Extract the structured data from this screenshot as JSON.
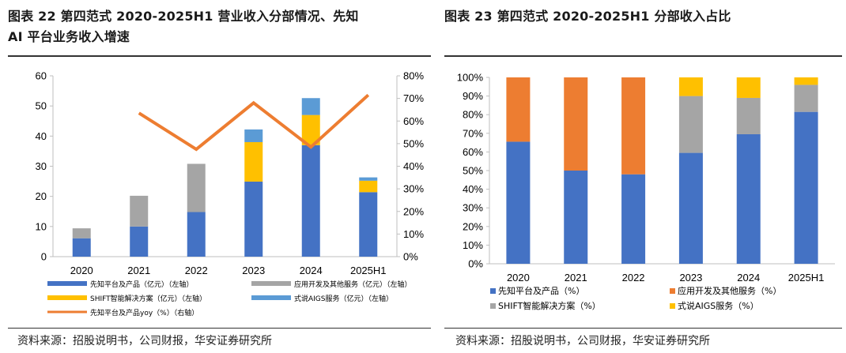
{
  "titles": {
    "left_line1": "图表 22 第四范式 2020-2025H1 营业收入分部情况、先知",
    "left_line2": "AI 平台业务收入增速",
    "right": "图表 23 第四范式 2020-2025H1 分部收入占比"
  },
  "sources": {
    "left": "资料来源：招股说明书，公司财报，华安证券研究所",
    "right": "资料来源：招股说明书，公司财报，华安证券研究所"
  },
  "colors": {
    "blue": "#4472C4",
    "orange": "#ED7D31",
    "gray": "#A5A5A5",
    "yellow": "#FFC000",
    "lightblue": "#5B9BD5"
  },
  "chart_data": [
    {
      "type": "bar",
      "stacked": true,
      "categories": [
        "2020",
        "2021",
        "2022",
        "2023",
        "2024",
        "2025H1"
      ],
      "series": [
        {
          "name": "先知平台及产品（亿元）（左轴）",
          "color": "#4472C4",
          "values": [
            6.1,
            10.0,
            14.8,
            24.9,
            37.0,
            21.4
          ]
        },
        {
          "name": "应用开发及其他服务（亿元）（左轴）",
          "color": "#A5A5A5",
          "values": [
            3.3,
            10.2,
            16.0,
            0,
            0,
            0
          ]
        },
        {
          "name": "SHIFT智能解决方案（亿元）（左轴）",
          "color": "#FFC000",
          "values": [
            0,
            0,
            0,
            13.1,
            10.0,
            3.8
          ]
        },
        {
          "name": "式说AIGS服务（亿元）（左轴）",
          "color": "#5B9BD5",
          "values": [
            0,
            0,
            0,
            4.2,
            5.6,
            1.1
          ]
        }
      ],
      "line_series": {
        "name": "先知平台及产品yoy（%）（右轴）",
        "color": "#ED7D31",
        "values": [
          null,
          63.5,
          47.5,
          68.0,
          48.5,
          71.5
        ]
      },
      "ylim_left": [
        0,
        60
      ],
      "yticks_left": [
        "0",
        "10",
        "20",
        "30",
        "40",
        "50",
        "60"
      ],
      "ylim_right": [
        0,
        80
      ],
      "yticks_right": [
        "0%",
        "10%",
        "20%",
        "30%",
        "40%",
        "50%",
        "60%",
        "70%",
        "80%"
      ],
      "legend": [
        "先知平台及产品（亿元）（左轴）",
        "应用开发及其他服务（亿元）（左轴）",
        "SHIFT智能解决方案（亿元）（左轴）",
        "式说AIGS服务（亿元）（左轴）",
        "先知平台及产品yoy（%）（右轴）"
      ],
      "legend_position": "bottom",
      "grid": false
    },
    {
      "type": "bar",
      "stacked": true,
      "percent": true,
      "categories": [
        "2020",
        "2021",
        "2022",
        "2023",
        "2024",
        "2025H1"
      ],
      "series": [
        {
          "name": "先知平台及产品（%）",
          "color": "#4472C4",
          "values": [
            65.5,
            50.0,
            48.0,
            59.5,
            69.5,
            81.5
          ]
        },
        {
          "name": "应用开发及其他服务（%）",
          "color": "#ED7D31",
          "values": [
            34.5,
            50.0,
            52.0,
            0,
            0,
            0
          ]
        },
        {
          "name": "SHIFT智能解决方案（%）",
          "color": "#A5A5A5",
          "values": [
            0,
            0,
            0,
            30.5,
            19.5,
            14.5
          ]
        },
        {
          "name": "式说AIGS服务（%）",
          "color": "#FFC000",
          "values": [
            0,
            0,
            0,
            10.0,
            11.0,
            4.0
          ]
        }
      ],
      "ylim": [
        0,
        100
      ],
      "yticks": [
        "0%",
        "10%",
        "20%",
        "30%",
        "40%",
        "50%",
        "60%",
        "70%",
        "80%",
        "90%",
        "100%"
      ],
      "legend": [
        "先知平台及产品（%）",
        "应用开发及其他服务（%）",
        "SHIFT智能解决方案（%）",
        "式说AIGS服务（%）"
      ],
      "legend_position": "bottom",
      "grid": false
    }
  ]
}
